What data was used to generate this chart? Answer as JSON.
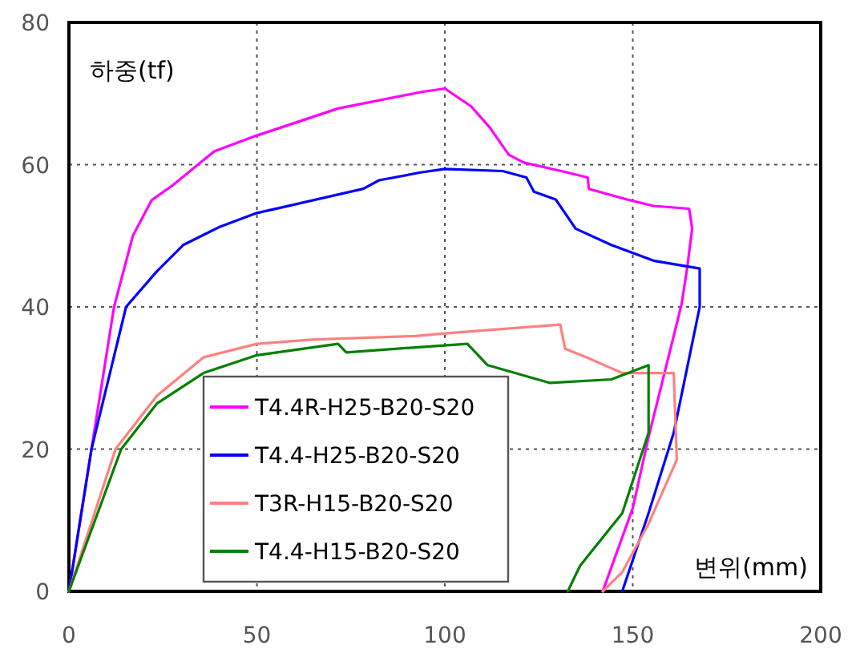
{
  "chart_data": {
    "type": "line",
    "xlabel": "변위(mm)",
    "ylabel": "하중(tf)",
    "xlim": [
      0,
      200
    ],
    "ylim": [
      0,
      80
    ],
    "xticks": [
      0,
      50,
      100,
      150,
      200
    ],
    "yticks": [
      0,
      20,
      40,
      60,
      80
    ],
    "grid": true,
    "legend": "bottom",
    "series": [
      {
        "name": "T4.4R-H25-B20-S20",
        "color": "#ff00ff",
        "x": [
          0,
          3,
          6,
          9,
          12,
          17,
          22,
          27.6,
          38.7,
          50,
          71.6,
          93.5,
          100,
          107,
          112,
          117,
          121,
          131,
          138,
          138.3,
          148.5,
          155.5,
          165,
          165.8,
          164.5,
          163,
          154.2,
          150,
          142
        ],
        "values": [
          0,
          10,
          20,
          30,
          40,
          50,
          55,
          57.1,
          61.9,
          64.1,
          67.9,
          70.2,
          70.7,
          68.2,
          65.2,
          61.4,
          60.3,
          59.1,
          58.2,
          56.6,
          55.1,
          54.2,
          53.8,
          51,
          45.6,
          40.4,
          21.7,
          11.7,
          0
        ]
      },
      {
        "name": "T4.4-H25-B20-S20",
        "color": "#0000ff",
        "x": [
          0,
          6,
          15.2,
          23.4,
          30.4,
          39.9,
          50,
          59.2,
          78.3,
          82.5,
          93.5,
          100,
          115.4,
          121.7,
          123.7,
          129.5,
          134.8,
          144.3,
          155.5,
          167.8,
          167.8,
          160.9,
          154.2,
          147.2
        ],
        "values": [
          0,
          20,
          40,
          45,
          48.7,
          51.2,
          53.2,
          54.3,
          56.6,
          57.8,
          58.9,
          59.4,
          59.1,
          58.2,
          56.2,
          55.1,
          51,
          48.7,
          46.5,
          45.4,
          40,
          22.3,
          11,
          0
        ]
      },
      {
        "name": "T3R-H15-B20-S20",
        "color": "#ff8080",
        "x": [
          0,
          12.4,
          23.4,
          35.8,
          50,
          64.7,
          92.3,
          100.6,
          130.7,
          132,
          137.7,
          147.2,
          160.9,
          161.7,
          154.2,
          147.2,
          142
        ],
        "values": [
          0,
          20,
          27.5,
          32.9,
          34.8,
          35.4,
          35.9,
          36.3,
          37.5,
          34.1,
          32.9,
          30.7,
          30.7,
          18.5,
          9.5,
          2.7,
          0
        ]
      },
      {
        "name": "T4.4-H15-B20-S20",
        "color": "#008000",
        "x": [
          0,
          13.9,
          23.4,
          35.8,
          50,
          71.6,
          73.8,
          92.3,
          106,
          111.4,
          128,
          144.3,
          154.2,
          154.2,
          147.2,
          136,
          132.7
        ],
        "values": [
          0,
          20,
          26.4,
          30.7,
          33.2,
          34.8,
          33.6,
          34.3,
          34.8,
          31.8,
          29.3,
          29.8,
          31.8,
          22.3,
          11,
          3.6,
          0
        ]
      }
    ]
  }
}
